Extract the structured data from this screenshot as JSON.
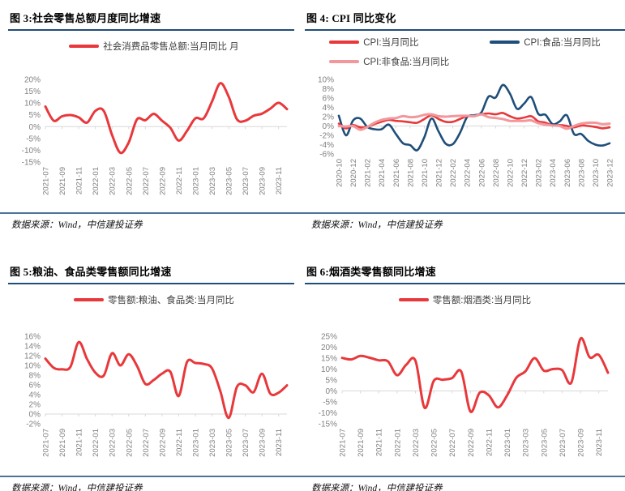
{
  "chart_data": [
    {
      "type": "line",
      "title": "图 3:社会零售总额月度同比增速",
      "source": "数据来源：Wind，中信建投证券",
      "x_start": "2021-07",
      "x_freq": "monthly",
      "xtick_labels": [
        "2021-07",
        "2021-09",
        "2021-11",
        "2022-01",
        "2022-03",
        "2022-05",
        "2022-07",
        "2022-09",
        "2022-11",
        "2023-01",
        "2023-03",
        "2023-05",
        "2023-07",
        "2023-09",
        "2023-11"
      ],
      "ylim": [
        -15,
        20
      ],
      "yticks": [
        20,
        15,
        10,
        5,
        0,
        -5,
        -10,
        -15
      ],
      "grid": "zero-axis-only",
      "legend_position": "top-center",
      "legend": [
        {
          "name": "社会消费品零售总额:当月同比 月",
          "color": "#E8383B"
        }
      ],
      "series": [
        {
          "name": "社会消费品零售总额:当月同比 月",
          "color": "#E8383B",
          "width": 3,
          "values": [
            8.5,
            2.5,
            4.4,
            4.9,
            3.9,
            1.7,
            6.7,
            6.7,
            -3.5,
            -11.1,
            -6.7,
            3.1,
            2.7,
            5.4,
            2.5,
            -0.5,
            -5.9,
            -1.8,
            3.5,
            3.5,
            10.6,
            18.4,
            12.7,
            3.1,
            2.5,
            4.6,
            5.5,
            7.6,
            10.1,
            7.4
          ]
        }
      ]
    },
    {
      "type": "line",
      "title": "图 4: CPI 同比变化",
      "source": "数据来源：Wind，中信建投证券",
      "x_start": "2020-10",
      "x_freq": "monthly",
      "xtick_labels": [
        "2020-10",
        "2020-12",
        "2021-02",
        "2021-04",
        "2021-06",
        "2021-08",
        "2021-10",
        "2021-12",
        "2022-02",
        "2022-04",
        "2022-06",
        "2022-08",
        "2022-10",
        "2022-12",
        "2023-02",
        "2023-04",
        "2023-06",
        "2023-08",
        "2023-10",
        "2023-12"
      ],
      "ylim": [
        -6,
        10
      ],
      "yticks": [
        10,
        8,
        6,
        4,
        2,
        0,
        -2,
        -4,
        -6
      ],
      "grid": "zero-axis-only",
      "legend_position": "top-center",
      "legend": [
        {
          "name": "CPI:当月同比",
          "color": "#E8383B"
        },
        {
          "name": "CPI:食品:当月同比",
          "color": "#1F4E79"
        },
        {
          "name": "CPI:非食品:当月同比",
          "color": "#F2979B"
        }
      ],
      "series": [
        {
          "name": "CPI:食品:当月同比",
          "color": "#1F4E79",
          "width": 2.6,
          "values": [
            2.2,
            -2.0,
            1.2,
            1.6,
            -0.2,
            -0.7,
            -0.7,
            0.3,
            -1.7,
            -3.7,
            -4.1,
            -5.2,
            -2.4,
            1.6,
            -1.2,
            -3.8,
            -3.9,
            -1.5,
            1.9,
            2.3,
            2.9,
            6.3,
            6.1,
            8.8,
            7.0,
            3.7,
            4.8,
            6.2,
            2.6,
            2.4,
            0.4,
            1.0,
            2.3,
            -1.7,
            -1.7,
            -3.2,
            -4.0,
            -4.2,
            -3.7
          ]
        },
        {
          "name": "CPI:当月同比",
          "color": "#E8383B",
          "width": 2.6,
          "values": [
            0.5,
            -0.5,
            0.2,
            -0.3,
            -0.2,
            0.4,
            0.9,
            1.3,
            1.1,
            1.0,
            0.8,
            0.7,
            1.5,
            2.3,
            1.5,
            0.9,
            0.9,
            1.5,
            2.1,
            2.1,
            2.5,
            2.7,
            2.5,
            2.8,
            2.1,
            1.6,
            1.8,
            2.1,
            1.0,
            0.7,
            0.1,
            0.2,
            0.0,
            -0.3,
            0.1,
            0.0,
            -0.2,
            -0.5,
            -0.3
          ]
        },
        {
          "name": "CPI:非食品:当月同比",
          "color": "#F2979B",
          "width": 3,
          "values": [
            0.0,
            -0.1,
            0.0,
            -0.8,
            -0.2,
            0.7,
            1.3,
            1.6,
            1.7,
            2.1,
            1.9,
            2.0,
            2.4,
            2.5,
            2.1,
            2.0,
            2.1,
            2.2,
            2.2,
            2.1,
            2.5,
            1.9,
            1.7,
            1.5,
            1.1,
            1.1,
            1.1,
            1.2,
            0.6,
            0.3,
            0.1,
            0.0,
            -0.6,
            0.0,
            0.5,
            0.7,
            0.7,
            0.4,
            0.5
          ]
        }
      ]
    },
    {
      "type": "line",
      "title": "图 5:粮油、食品类零售额同比增速",
      "source": "数据来源：Wind，中信建投证券",
      "x_start": "2021-07",
      "x_freq": "monthly",
      "xtick_labels": [
        "2021-07",
        "2021-09",
        "2021-11",
        "2022-01",
        "2022-03",
        "2022-05",
        "2022-07",
        "2022-09",
        "2022-11",
        "2023-01",
        "2023-03",
        "2023-05",
        "2023-07",
        "2023-09",
        "2023-11"
      ],
      "ylim": [
        -2,
        16
      ],
      "yticks": [
        16,
        14,
        12,
        10,
        8,
        6,
        4,
        2,
        0,
        -2
      ],
      "grid": "zero-axis-only",
      "legend_position": "top-center",
      "legend": [
        {
          "name": "零售额:粮油、食品类:当月同比",
          "color": "#E8383B"
        }
      ],
      "series": [
        {
          "name": "零售额:粮油、食品类:当月同比",
          "color": "#E8383B",
          "width": 3,
          "values": [
            11.4,
            9.5,
            9.2,
            9.7,
            14.8,
            11.3,
            8.5,
            7.9,
            12.5,
            10.0,
            12.3,
            9.9,
            6.2,
            7.0,
            8.3,
            8.7,
            3.7,
            10.7,
            10.5,
            10.3,
            9.4,
            4.7,
            -0.8,
            5.6,
            5.9,
            4.5,
            8.3,
            4.2,
            4.4,
            5.9
          ]
        }
      ]
    },
    {
      "type": "line",
      "title": "图 6:烟酒类零售额同比增速",
      "source": "数据来源：Wind，中信建投证券",
      "x_start": "2021-07",
      "x_freq": "monthly",
      "xtick_labels": [
        "2021-07",
        "2021-09",
        "2021-11",
        "2022-01",
        "2022-03",
        "2022-05",
        "2022-07",
        "2022-09",
        "2022-11",
        "2023-01",
        "2023-03",
        "2023-05",
        "2023-07",
        "2023-09",
        "2023-11"
      ],
      "ylim": [
        -15,
        25
      ],
      "yticks": [
        25,
        20,
        15,
        10,
        5,
        0,
        -5,
        -10,
        -15
      ],
      "grid": "zero-axis-only",
      "legend_position": "top-center",
      "legend": [
        {
          "name": "零售额:烟酒类:当月同比",
          "color": "#E8383B"
        }
      ],
      "series": [
        {
          "name": "零售额:烟酒类:当月同比",
          "color": "#E8383B",
          "width": 3,
          "values": [
            15.1,
            14.4,
            16.0,
            15.2,
            14.0,
            13.5,
            7.2,
            12.0,
            13.8,
            -7.7,
            4.6,
            5.1,
            5.9,
            8.8,
            -9.4,
            -0.8,
            -2.0,
            -7.5,
            -2.0,
            6.0,
            9.0,
            15.0,
            9.3,
            10.0,
            9.5,
            3.8,
            23.9,
            15.4,
            16.5,
            8.3
          ]
        }
      ]
    }
  ],
  "colors": {
    "accent_red": "#E8383B",
    "accent_blue": "#1F4E79",
    "accent_pink": "#F2979B",
    "title_rule": "#1F4E79",
    "source_rule": "#4C7498",
    "axis_gray": "#D9D9D9",
    "tick_text": "#808080"
  }
}
